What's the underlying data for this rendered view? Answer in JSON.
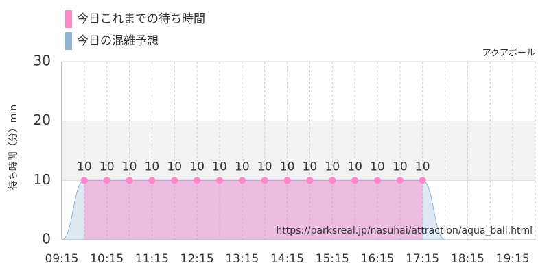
{
  "chart_data": {
    "type": "area",
    "corner_label": "アクアボール",
    "y_label": "待ち時間（分）min",
    "watermark": "https://parksreal.jp/nasuhai/attraction/aqua_ball.html",
    "categories": [
      "09:15",
      null,
      "10:15",
      null,
      "11:15",
      null,
      "12:15",
      null,
      "13:15",
      null,
      "14:15",
      null,
      "15:15",
      null,
      "16:15",
      null,
      "17:15",
      null,
      "18:15",
      null,
      "19:15",
      null
    ],
    "series": [
      {
        "name": "今日これまでの待ち時間",
        "color": "#ff88cc",
        "values": [
          null,
          10,
          10,
          10,
          10,
          10,
          10,
          10,
          10,
          10,
          10,
          10,
          10,
          10,
          10,
          10,
          10,
          null,
          null,
          null,
          null,
          null
        ]
      },
      {
        "name": "今日の混雑予想",
        "color": "#8fb3d3",
        "values": [
          0,
          10,
          10,
          10,
          10,
          10,
          10,
          10,
          10,
          10,
          10,
          10,
          10,
          10,
          10,
          10,
          10,
          0,
          0,
          0,
          0,
          0
        ]
      }
    ],
    "ylim": [
      0,
      30
    ],
    "yticks": [
      0,
      10,
      20,
      30
    ],
    "band": [
      10,
      20
    ],
    "grid": true
  }
}
